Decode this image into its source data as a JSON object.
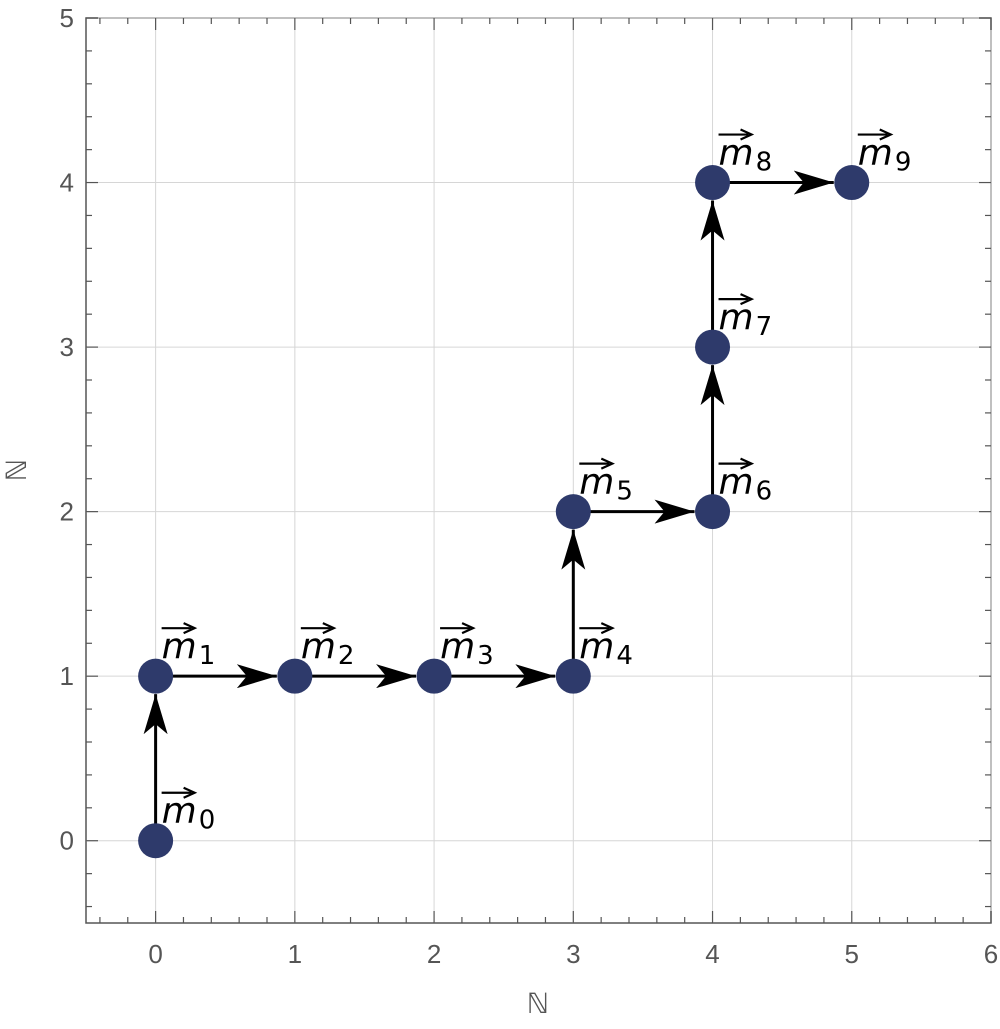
{
  "chart_data": {
    "type": "scatter",
    "title": "",
    "xlabel": "ℕ",
    "ylabel": "ℕ",
    "xlim": [
      -0.5,
      6
    ],
    "ylim": [
      -0.5,
      5
    ],
    "x_ticks": [
      0,
      1,
      2,
      3,
      4,
      5,
      6
    ],
    "y_ticks": [
      0,
      1,
      2,
      3,
      4,
      5
    ],
    "grid": true,
    "legend": "none",
    "point_color": "#2e3a6b",
    "arrow_color": "#000000",
    "points": [
      {
        "x": 0,
        "y": 0,
        "label": "m",
        "sub": "0"
      },
      {
        "x": 0,
        "y": 1,
        "label": "m",
        "sub": "1"
      },
      {
        "x": 1,
        "y": 1,
        "label": "m",
        "sub": "2"
      },
      {
        "x": 2,
        "y": 1,
        "label": "m",
        "sub": "3"
      },
      {
        "x": 3,
        "y": 1,
        "label": "m",
        "sub": "4"
      },
      {
        "x": 3,
        "y": 2,
        "label": "m",
        "sub": "5"
      },
      {
        "x": 4,
        "y": 2,
        "label": "m",
        "sub": "6"
      },
      {
        "x": 4,
        "y": 3,
        "label": "m",
        "sub": "7"
      },
      {
        "x": 4,
        "y": 4,
        "label": "m",
        "sub": "8"
      },
      {
        "x": 5,
        "y": 4,
        "label": "m",
        "sub": "9"
      }
    ]
  }
}
